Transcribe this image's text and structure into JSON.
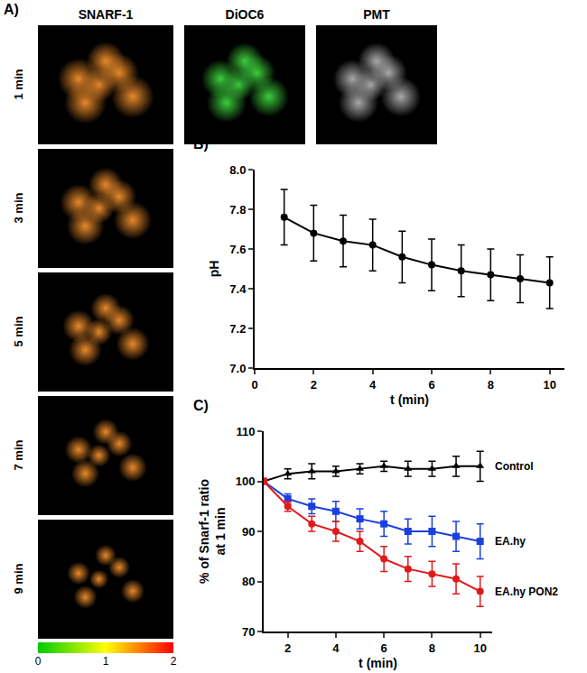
{
  "images": {
    "title": "A)",
    "columns": [
      {
        "title": "SNARF-1",
        "color": "#e8892a"
      },
      {
        "title": "DiOC6",
        "color": "#3ccc3c"
      },
      {
        "title": "PMT",
        "color": "#a8a8a8"
      }
    ],
    "times": [
      "1 min",
      "3 min",
      "5 min",
      "7 min",
      "9 min"
    ],
    "colorbar": {
      "range": [
        0,
        2
      ],
      "ticks": [
        0,
        1,
        2
      ],
      "colors": [
        "#00cc00",
        "#ffff00",
        "#ff0000"
      ]
    }
  },
  "chart_data": [
    {
      "type": "line",
      "title": "B)",
      "x_label": "t (min)",
      "y_label": "pH",
      "x": [
        1,
        2,
        3,
        4,
        5,
        6,
        7,
        8,
        9,
        10
      ],
      "series": [
        {
          "color": "#000000",
          "marker": "circle",
          "line_style": "solid",
          "values": [
            7.76,
            7.68,
            7.64,
            7.62,
            7.56,
            7.52,
            7.49,
            7.47,
            7.45,
            7.43
          ],
          "errors": [
            0.14,
            0.14,
            0.13,
            0.13,
            0.13,
            0.13,
            0.13,
            0.13,
            0.12,
            0.13
          ]
        }
      ],
      "xlim": [
        0,
        10.5
      ],
      "xticks": [
        0,
        2,
        4,
        6,
        8,
        10
      ],
      "ylim": [
        7.0,
        8.0
      ],
      "yticks": [
        {
          "value": 7.0,
          "label": "7.0"
        },
        7.2,
        7.4,
        7.6,
        7.8,
        {
          "value": 8.0,
          "label": "8.0"
        }
      ],
      "grid": false
    },
    {
      "type": "line",
      "title": "C)",
      "x_label": "t (min)",
      "y_label": "% of Snarf-1 ratio\nat 1 min",
      "x": [
        1,
        2,
        3,
        4,
        5,
        6,
        7,
        8,
        9,
        10
      ],
      "series": [
        {
          "name": "Control",
          "color": "#000000",
          "marker": "triangle",
          "line_style": "solid",
          "values": [
            100,
            101.5,
            102,
            102,
            102.5,
            103,
            102.5,
            102.5,
            103,
            103
          ],
          "errors": [
            0.5,
            1,
            1.5,
            1,
            1,
            1,
            1.5,
            1.5,
            2,
            3
          ]
        },
        {
          "name": "EA.hy",
          "color": "#1a3fe0",
          "marker": "square",
          "line_style": "solid",
          "values": [
            100,
            96.5,
            95,
            94,
            92.5,
            91.5,
            90,
            90,
            89,
            88
          ],
          "errors": [
            0.5,
            1,
            1.5,
            2,
            2,
            2.5,
            2.5,
            3,
            3,
            3.5
          ]
        },
        {
          "name": "EA.hy PON2",
          "color": "#e01a1a",
          "marker": "circle",
          "line_style": "solid",
          "values": [
            100,
            95,
            91.5,
            90,
            88,
            84.5,
            82.5,
            81.5,
            80.5,
            78
          ],
          "errors": [
            0.5,
            1,
            1.5,
            2,
            2,
            2.5,
            2.5,
            2.5,
            3,
            3
          ]
        }
      ],
      "xlim": [
        1,
        10.5
      ],
      "xticks": [
        2,
        4,
        6,
        8,
        10
      ],
      "ylim": [
        70,
        110
      ],
      "yticks": [
        70,
        80,
        90,
        100,
        110
      ],
      "grid": false
    }
  ]
}
